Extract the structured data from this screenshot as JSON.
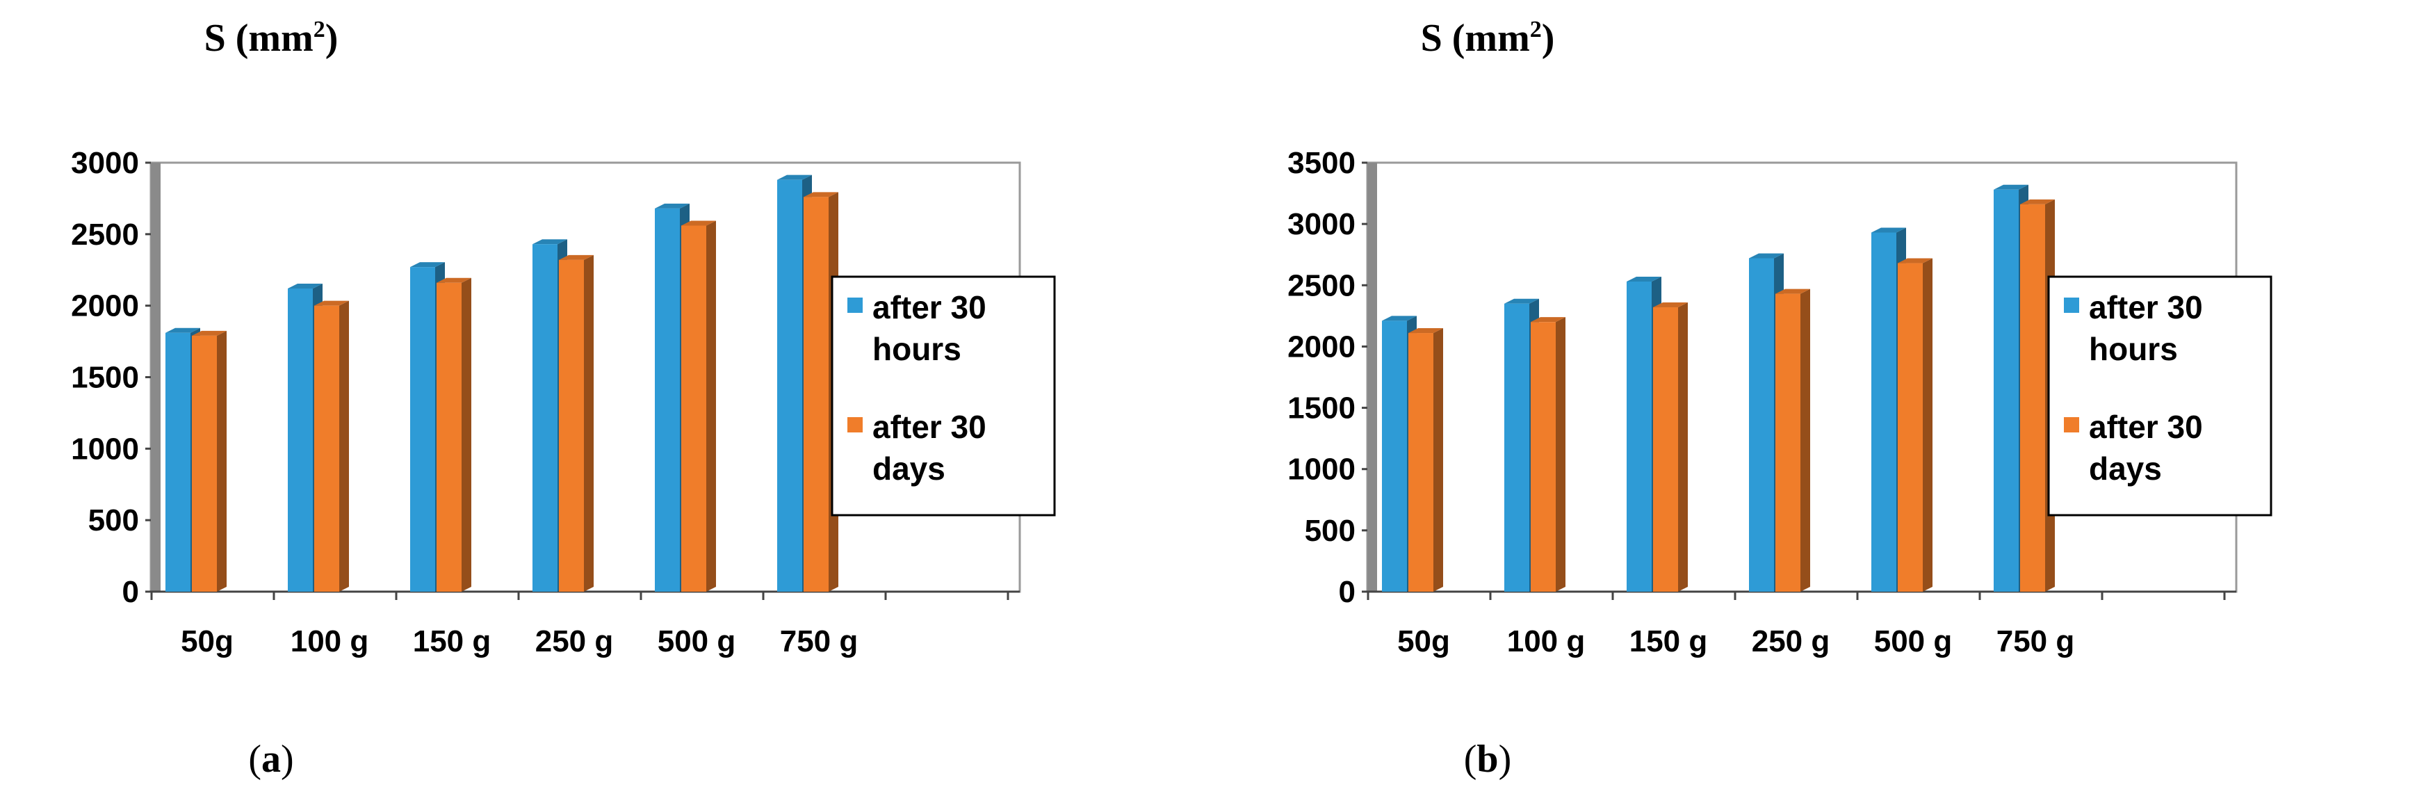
{
  "chart_data": [
    {
      "type": "bar",
      "title": "S (mm",
      "title_superscript": "2",
      "title_close": ")",
      "caption_open": "(",
      "caption_letter": "a",
      "caption_close": ")",
      "categories": [
        "50g",
        "100 g",
        "150 g",
        "250 g",
        "500 g",
        "750 g"
      ],
      "series": [
        {
          "name": "after 30 hours",
          "legend_lines": [
            "after 30",
            "hours"
          ],
          "color": "#2E9BD6",
          "values": [
            1810,
            2120,
            2270,
            2430,
            2680,
            2880
          ]
        },
        {
          "name": "after 30 days",
          "legend_lines": [
            "after 30",
            "days"
          ],
          "color": "#F07D2A",
          "values": [
            1790,
            2000,
            2160,
            2320,
            2560,
            2760
          ]
        }
      ],
      "ylim": [
        0,
        3000
      ],
      "yticks": [
        0,
        500,
        1000,
        1500,
        2000,
        2500,
        3000
      ],
      "ytick_labels": [
        "0",
        "500",
        "1000",
        "1500",
        "2000",
        "2500",
        "3000"
      ],
      "grid": false,
      "legend_position": "right"
    },
    {
      "type": "bar",
      "title": "S (mm",
      "title_superscript": "2",
      "title_close": ")",
      "caption_open": "(",
      "caption_letter": "b",
      "caption_close": ")",
      "categories": [
        "50g",
        "100 g",
        "150 g",
        "250 g",
        "500 g",
        "750 g"
      ],
      "series": [
        {
          "name": "after 30 hours",
          "legend_lines": [
            "after 30",
            "hours"
          ],
          "color": "#2E9BD6",
          "values": [
            2210,
            2350,
            2530,
            2720,
            2930,
            3280
          ]
        },
        {
          "name": "after 30 days",
          "legend_lines": [
            "after 30",
            "days"
          ],
          "color": "#F07D2A",
          "values": [
            2110,
            2200,
            2320,
            2430,
            2680,
            3160
          ]
        }
      ],
      "ylim": [
        0,
        3500
      ],
      "yticks": [
        0,
        500,
        1000,
        1500,
        2000,
        2500,
        3000,
        3500
      ],
      "ytick_labels": [
        "0",
        "500",
        "1000",
        "1500",
        "2000",
        "2500",
        "3000",
        "3500"
      ],
      "grid": false,
      "legend_position": "right"
    }
  ]
}
